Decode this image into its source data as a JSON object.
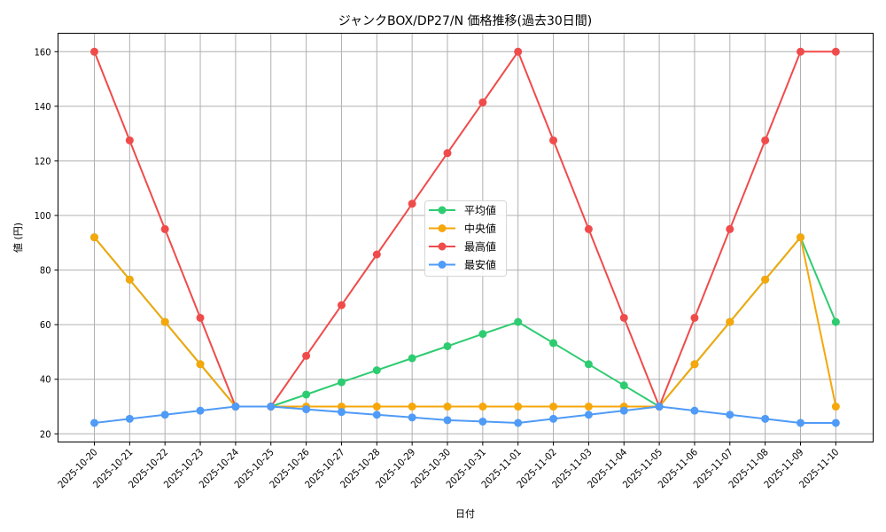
{
  "chart_data": {
    "type": "line",
    "title": "ジャンクBOX/DP27/N 価格推移(過去30日間)",
    "xlabel": "日付",
    "ylabel": "値 (円)",
    "ylim": [
      17.5,
      166.5
    ],
    "yticks": [
      20,
      40,
      60,
      80,
      100,
      120,
      140,
      160
    ],
    "grid": true,
    "legend_position": "center",
    "categories": [
      "2025-10-20",
      "2025-10-21",
      "2025-10-22",
      "2025-10-23",
      "2025-10-24",
      "2025-10-25",
      "2025-10-26",
      "2025-10-27",
      "2025-10-28",
      "2025-10-29",
      "2025-10-30",
      "2025-10-31",
      "2025-11-01",
      "2025-11-02",
      "2025-11-03",
      "2025-11-04",
      "2025-11-05",
      "2025-11-06",
      "2025-11-07",
      "2025-11-08",
      "2025-11-09",
      "2025-11-10"
    ],
    "series": [
      {
        "name": "平均値",
        "color": "#2ecc71",
        "values": [
          92,
          76.5,
          61,
          45.5,
          30,
          30,
          34.4,
          38.9,
          43.3,
          47.7,
          52.1,
          56.6,
          61,
          53.25,
          45.5,
          37.75,
          30,
          45.5,
          61,
          76.5,
          92,
          61
        ]
      },
      {
        "name": "中央値",
        "color": "#f5a70b",
        "values": [
          92,
          76.5,
          61,
          45.5,
          30,
          30,
          30,
          30,
          30,
          30,
          30,
          30,
          30,
          30,
          30,
          30,
          30,
          45.5,
          61,
          76.5,
          92,
          30
        ]
      },
      {
        "name": "最高値",
        "color": "#f04b4b",
        "values": [
          160,
          127.5,
          95,
          62.5,
          30,
          30,
          48.57,
          67.14,
          85.71,
          104.29,
          122.86,
          141.43,
          160,
          127.5,
          95,
          62.5,
          30,
          62.5,
          95,
          127.5,
          160,
          160
        ]
      },
      {
        "name": "最安値",
        "color": "#4f9bf7",
        "values": [
          24,
          25.5,
          27,
          28.5,
          30,
          30,
          29,
          28,
          27,
          26,
          25,
          24.5,
          24,
          25.5,
          27,
          28.5,
          30,
          28.5,
          27,
          25.5,
          24,
          24
        ]
      }
    ]
  }
}
